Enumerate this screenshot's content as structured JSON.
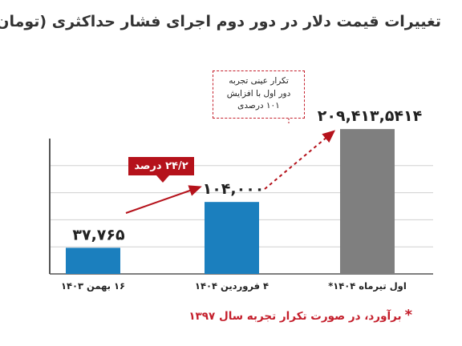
{
  "title": "تغییرات قیمت دلار در دور دوم اجرای فشار حداکثری (تومان)",
  "callout": {
    "lines": [
      "تکرار عینی تجربه",
      "دور اول با افزایش",
      "۱۰۱ درصدی"
    ]
  },
  "growth_badge": "۲۴/۲ درصد",
  "footnote": {
    "star": "*",
    "text": "برآورد، در صورت تکرار تجربه سال ۱۳۹۷"
  },
  "colors": {
    "bar_primary": "#1b7fbe",
    "bar_estimate": "#7f7f7f",
    "accent_red": "#b5121b",
    "axis": "#555555",
    "grid": "#d0d0d0"
  },
  "chart_data": {
    "type": "bar",
    "categories": [
      "۱۶ بهمن ۱۴۰۳",
      "۴ فروردین ۱۴۰۴",
      "اول تیرماه ۱۴۰۴*"
    ],
    "values": [
      37765,
      104000,
      209414
    ],
    "value_labels": [
      "۳۷,۷۶۵",
      "۱۰۴,۰۰۰",
      "۲۰۹,۴۱۳,۵۴۱۴"
    ],
    "ylim": [
      0,
      220000
    ],
    "grid": true,
    "title": "تغییرات قیمت دلار در دور دوم اجرای فشار حداکثری (تومان)",
    "xlabel": "",
    "ylabel": ""
  }
}
